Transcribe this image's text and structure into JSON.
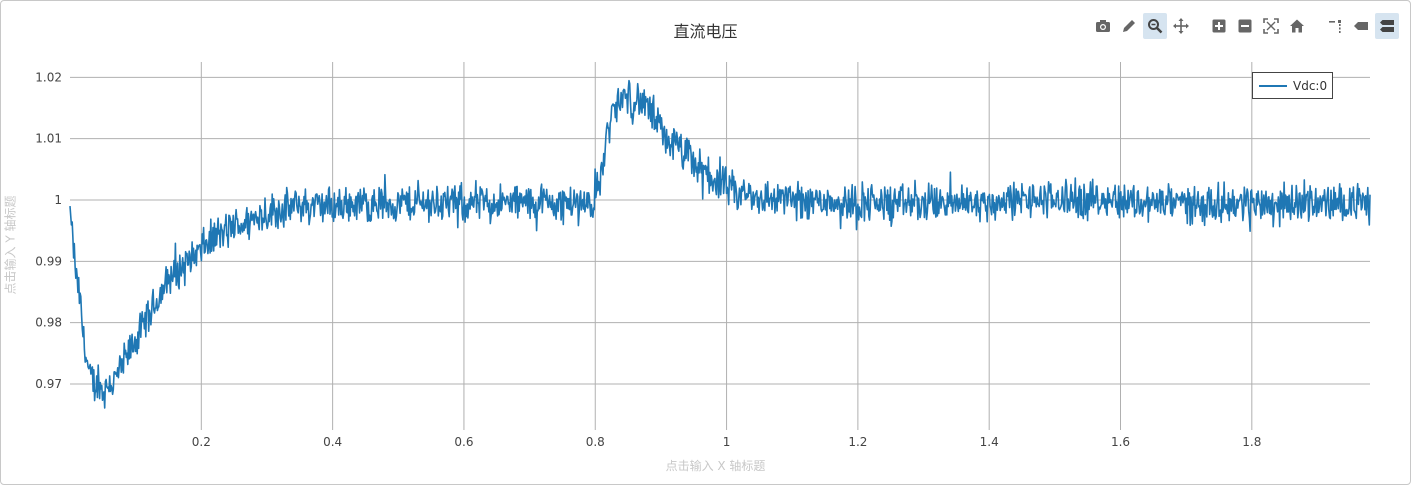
{
  "title": "直流电压",
  "xlabel": "点击输入 X 轴标题",
  "ylabel": "点击输入 Y 轴标题",
  "modebar": [
    {
      "name": "camera-icon"
    },
    {
      "name": "pencil-icon"
    },
    {
      "name": "zoom-icon",
      "active": true
    },
    {
      "name": "pan-icon"
    },
    {
      "name": "zoom-in-icon"
    },
    {
      "name": "zoom-out-icon"
    },
    {
      "name": "autoscale-icon"
    },
    {
      "name": "home-icon"
    },
    {
      "name": "spike-lines-icon"
    },
    {
      "name": "hover-closest-icon"
    },
    {
      "name": "hover-compare-icon",
      "active": true
    }
  ],
  "chart_data": {
    "type": "line",
    "title": "直流电压",
    "xlabel": "点击输入 X 轴标题",
    "ylabel": "点击输入 Y 轴标题",
    "xlim": [
      0,
      1.98
    ],
    "ylim": [
      0.9625,
      1.0225
    ],
    "x_ticks": [
      0.2,
      0.4,
      0.6,
      0.8,
      1.0,
      1.2,
      1.4,
      1.6,
      1.8
    ],
    "x_tick_labels": [
      "0.2",
      "0.4",
      "0.6",
      "0.8",
      "1",
      "1.2",
      "1.4",
      "1.6",
      "1.8"
    ],
    "y_ticks": [
      0.97,
      0.98,
      0.99,
      1.0,
      1.01,
      1.02
    ],
    "y_tick_labels": [
      "0.97",
      "0.98",
      "0.99",
      "1",
      "1.01",
      "1.02"
    ],
    "grid": true,
    "legend_position": "top-right",
    "color": "#1f77b4",
    "series": [
      {
        "name": "Vdc:0",
        "x": [
          0.0,
          0.005,
          0.01,
          0.015,
          0.02,
          0.025,
          0.03,
          0.04,
          0.05,
          0.06,
          0.07,
          0.08,
          0.09,
          0.1,
          0.11,
          0.12,
          0.13,
          0.14,
          0.15,
          0.16,
          0.17,
          0.18,
          0.19,
          0.2,
          0.22,
          0.24,
          0.26,
          0.28,
          0.3,
          0.35,
          0.4,
          0.45,
          0.5,
          0.55,
          0.6,
          0.65,
          0.7,
          0.75,
          0.79,
          0.8,
          0.81,
          0.82,
          0.83,
          0.84,
          0.85,
          0.86,
          0.87,
          0.88,
          0.89,
          0.9,
          0.92,
          0.94,
          0.96,
          0.98,
          1.0,
          1.02,
          1.05,
          1.1,
          1.15,
          1.2,
          1.25,
          1.3,
          1.35,
          1.4,
          1.45,
          1.5,
          1.55,
          1.6,
          1.65,
          1.7,
          1.75,
          1.8,
          1.85,
          1.9,
          1.95,
          1.98
        ],
        "y": [
          0.999,
          0.992,
          0.987,
          0.984,
          0.978,
          0.974,
          0.971,
          0.97,
          0.969,
          0.97,
          0.971,
          0.973,
          0.975,
          0.977,
          0.979,
          0.981,
          0.983,
          0.985,
          0.987,
          0.988,
          0.989,
          0.99,
          0.991,
          0.992,
          0.994,
          0.995,
          0.996,
          0.997,
          0.998,
          0.999,
          0.999,
          0.9995,
          0.9995,
          0.9995,
          0.9995,
          0.9995,
          0.9995,
          0.9995,
          0.9995,
          1.0,
          1.005,
          1.012,
          1.015,
          1.016,
          1.017,
          1.0165,
          1.016,
          1.015,
          1.013,
          1.011,
          1.009,
          1.007,
          1.005,
          1.0035,
          1.002,
          1.001,
          1.0005,
          1.0,
          1.0,
          0.9995,
          0.9995,
          0.9995,
          0.9995,
          0.9995,
          1.0,
          1.0,
          1.0,
          1.0,
          0.9995,
          0.9995,
          0.9995,
          0.9995,
          0.9995,
          0.9995,
          0.9995,
          0.9995
        ],
        "noise_amplitude": 0.0025
      }
    ]
  }
}
